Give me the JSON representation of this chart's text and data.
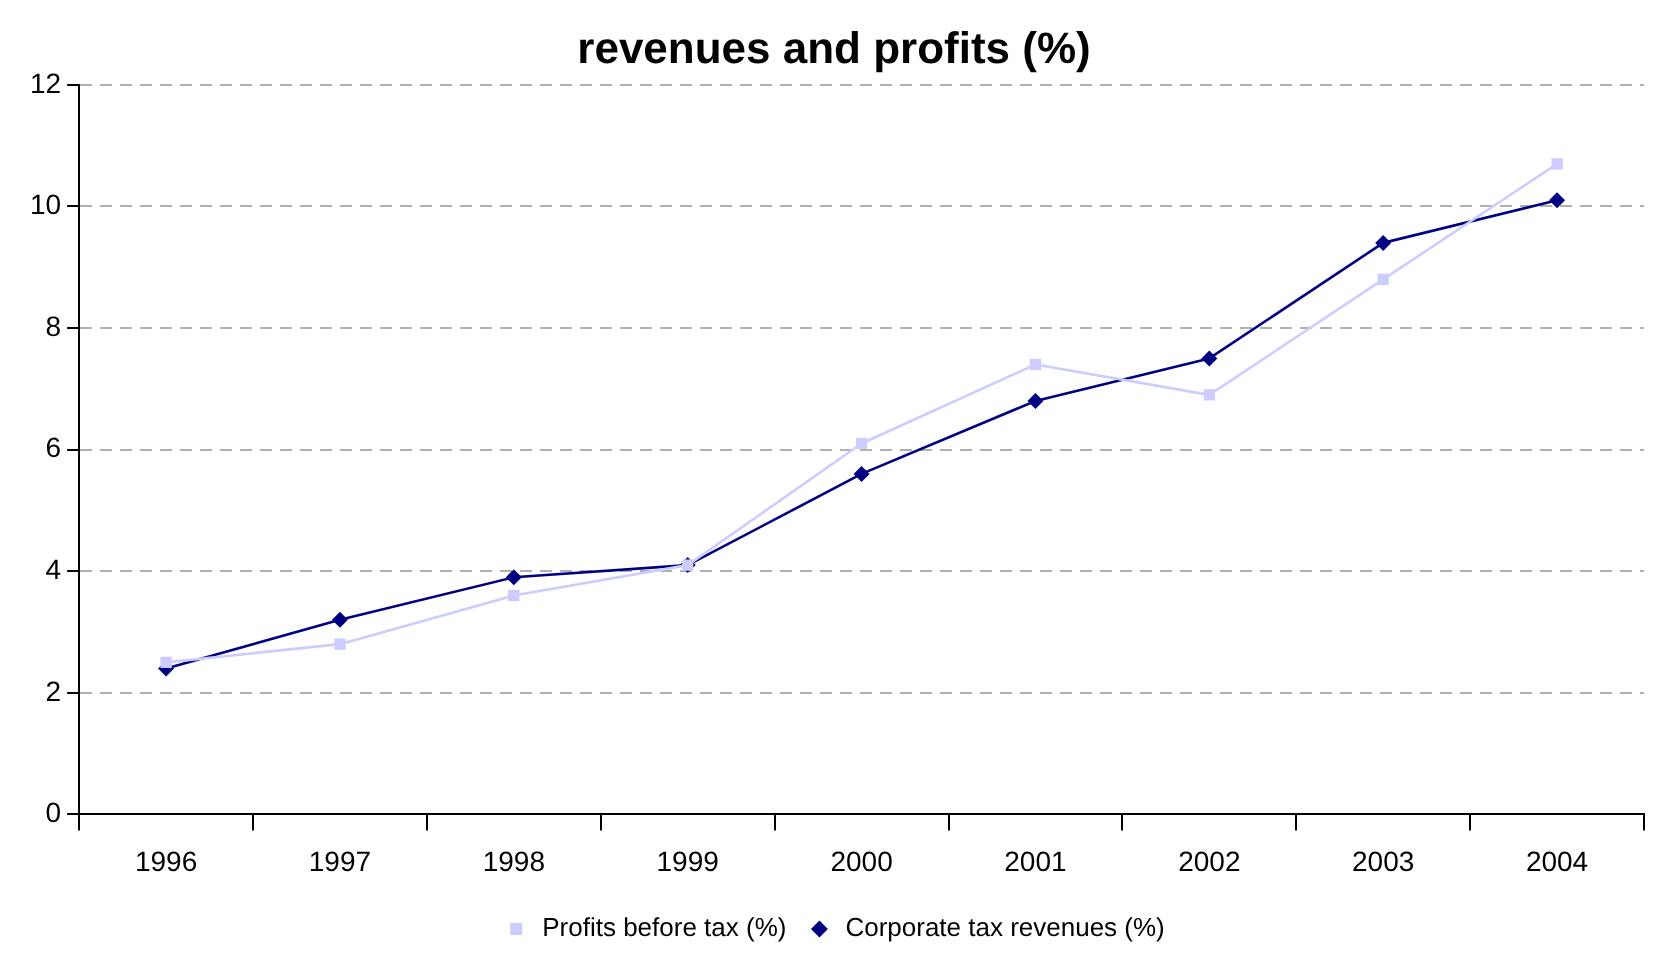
{
  "chart_data": {
    "type": "line",
    "title": "revenues and profits (%)",
    "categories": [
      "1996",
      "1997",
      "1998",
      "1999",
      "2000",
      "2001",
      "2002",
      "2003",
      "2004"
    ],
    "series": [
      {
        "name": "Corporate tax revenues (%)",
        "color": "#000080",
        "marker": "diamond",
        "values": [
          2.4,
          3.2,
          3.9,
          4.1,
          5.6,
          6.8,
          7.5,
          9.4,
          10.1
        ]
      },
      {
        "name": "Profits before tax (%)",
        "color": "#ccccff",
        "marker": "square",
        "values": [
          2.5,
          2.8,
          3.6,
          4.1,
          6.1,
          7.4,
          6.9,
          8.8,
          10.7
        ]
      }
    ],
    "ylim": [
      0,
      12
    ],
    "yticks": [
      0,
      2,
      4,
      6,
      8,
      10,
      12
    ],
    "grid": "y",
    "legend": "bottom"
  }
}
